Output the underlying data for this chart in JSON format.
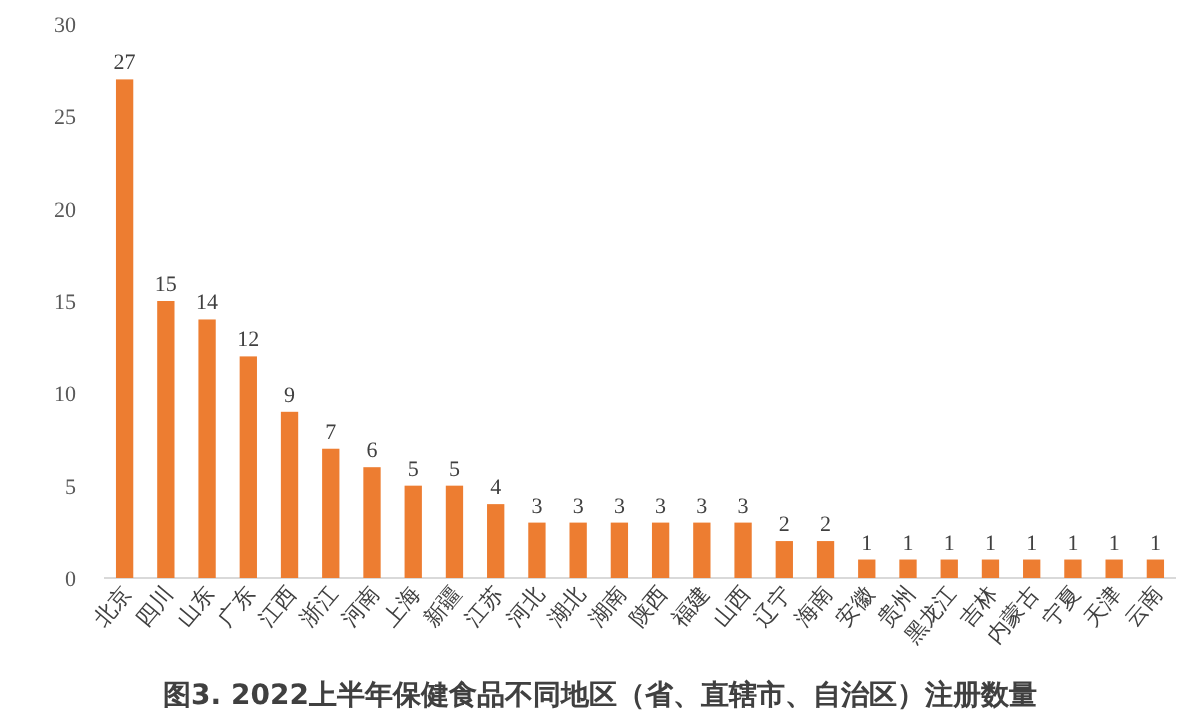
{
  "chart_data": {
    "type": "bar",
    "title": "图3. 2022上半年保健食品不同地区（省、直辖市、自治区）注册数量",
    "categories": [
      "北京",
      "四川",
      "山东",
      "广东",
      "江西",
      "浙江",
      "河南",
      "上海",
      "新疆",
      "江苏",
      "河北",
      "湖北",
      "湖南",
      "陕西",
      "福建",
      "山西",
      "辽宁",
      "海南",
      "安徽",
      "贵州",
      "黑龙江",
      "吉林",
      "内蒙古",
      "宁夏",
      "天津",
      "云南"
    ],
    "values": [
      27,
      15,
      14,
      12,
      9,
      7,
      6,
      5,
      5,
      4,
      3,
      3,
      3,
      3,
      3,
      3,
      2,
      2,
      1,
      1,
      1,
      1,
      1,
      1,
      1,
      1
    ],
    "color": "#ed7d31",
    "ylim": [
      0,
      30
    ],
    "yticks": [
      0,
      5,
      10,
      15,
      20,
      25,
      30
    ],
    "data_labels": true
  }
}
